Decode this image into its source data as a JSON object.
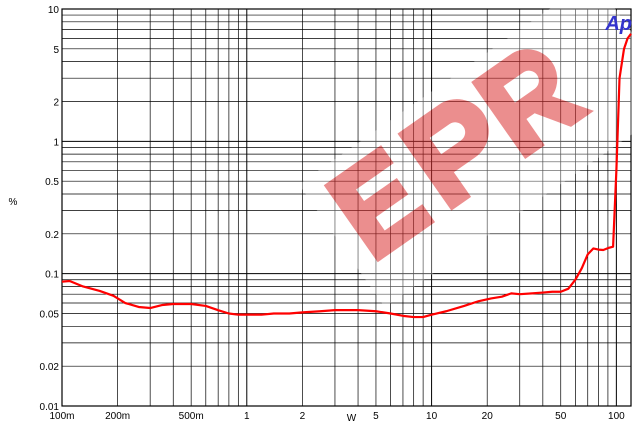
{
  "chart_data": {
    "type": "line",
    "xscale": "log",
    "yscale": "log",
    "xlim": [
      0.1,
      120
    ],
    "ylim": [
      0.01,
      10
    ],
    "xlabel": "W",
    "ylabel": "%",
    "grid": true,
    "x_ticks": [
      {
        "v": 0.1,
        "label": "100m"
      },
      {
        "v": 0.2,
        "label": "200m"
      },
      {
        "v": 0.5,
        "label": "500m"
      },
      {
        "v": 1,
        "label": "1"
      },
      {
        "v": 2,
        "label": "2"
      },
      {
        "v": 5,
        "label": "5"
      },
      {
        "v": 10,
        "label": "10"
      },
      {
        "v": 20,
        "label": "20"
      },
      {
        "v": 50,
        "label": "50"
      },
      {
        "v": 100,
        "label": "100"
      }
    ],
    "y_ticks": [
      {
        "v": 10,
        "label": "10"
      },
      {
        "v": 5,
        "label": "5"
      },
      {
        "v": 2,
        "label": "2"
      },
      {
        "v": 1,
        "label": "1"
      },
      {
        "v": 0.5,
        "label": "0.5"
      },
      {
        "v": 0.2,
        "label": "0.2"
      },
      {
        "v": 0.1,
        "label": "0.1"
      },
      {
        "v": 0.05,
        "label": "0.05"
      },
      {
        "v": 0.02,
        "label": "0.02"
      },
      {
        "v": 0.01,
        "label": "0.01"
      }
    ],
    "series": [
      {
        "color": "#ff0000",
        "points": [
          [
            0.1,
            0.087
          ],
          [
            0.11,
            0.088
          ],
          [
            0.13,
            0.08
          ],
          [
            0.16,
            0.074
          ],
          [
            0.19,
            0.068
          ],
          [
            0.22,
            0.06
          ],
          [
            0.26,
            0.056
          ],
          [
            0.3,
            0.055
          ],
          [
            0.35,
            0.058
          ],
          [
            0.4,
            0.059
          ],
          [
            0.5,
            0.059
          ],
          [
            0.6,
            0.057
          ],
          [
            0.7,
            0.053
          ],
          [
            0.8,
            0.05
          ],
          [
            0.9,
            0.049
          ],
          [
            1.0,
            0.049
          ],
          [
            1.2,
            0.049
          ],
          [
            1.4,
            0.05
          ],
          [
            1.7,
            0.05
          ],
          [
            2.0,
            0.051
          ],
          [
            2.5,
            0.052
          ],
          [
            3.0,
            0.053
          ],
          [
            4.0,
            0.053
          ],
          [
            5.0,
            0.052
          ],
          [
            6.0,
            0.05
          ],
          [
            7.0,
            0.048
          ],
          [
            8.0,
            0.047
          ],
          [
            9.0,
            0.047
          ],
          [
            10,
            0.049
          ],
          [
            12,
            0.052
          ],
          [
            15,
            0.057
          ],
          [
            18,
            0.062
          ],
          [
            21,
            0.065
          ],
          [
            24,
            0.067
          ],
          [
            27,
            0.071
          ],
          [
            30,
            0.07
          ],
          [
            35,
            0.071
          ],
          [
            40,
            0.072
          ],
          [
            45,
            0.073
          ],
          [
            50,
            0.073
          ],
          [
            55,
            0.077
          ],
          [
            60,
            0.09
          ],
          [
            65,
            0.11
          ],
          [
            70,
            0.14
          ],
          [
            75,
            0.155
          ],
          [
            80,
            0.152
          ],
          [
            85,
            0.151
          ],
          [
            90,
            0.156
          ],
          [
            96,
            0.16
          ],
          [
            100,
            0.6
          ],
          [
            104,
            3.0
          ],
          [
            110,
            5.0
          ],
          [
            115,
            6.0
          ],
          [
            120,
            6.5
          ]
        ]
      }
    ]
  },
  "colors": {
    "watermark": "#dc3232",
    "logo": "#3333cc"
  },
  "watermark": {
    "icon": "epr-watermark-icon",
    "text": "EPR"
  },
  "logo": {
    "text": "Ap"
  }
}
